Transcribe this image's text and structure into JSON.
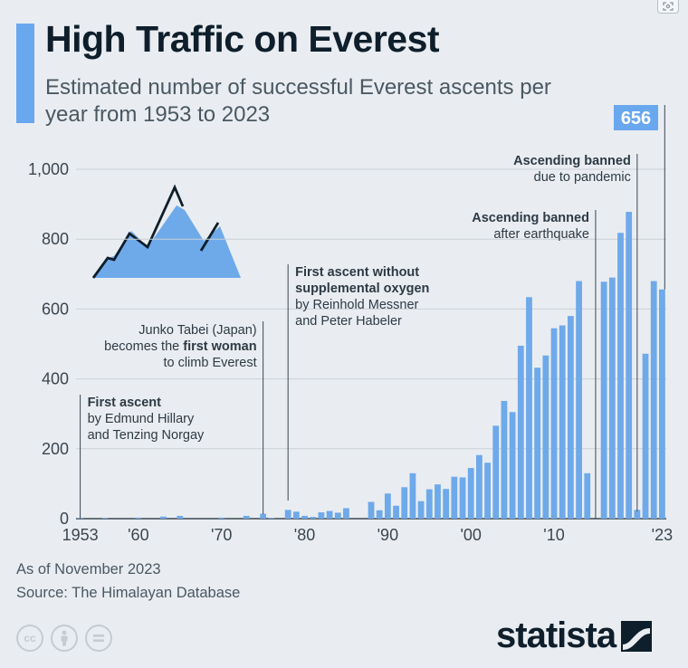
{
  "header": {
    "title": "High Traffic on Everest",
    "subtitle": "Estimated number of successful Everest ascents per year from 1953 to 2023"
  },
  "chart_data": {
    "type": "bar",
    "ylim": [
      0,
      1000
    ],
    "yticks": [
      0,
      200,
      400,
      600,
      800,
      1000
    ],
    "ytick_labels": [
      "0",
      "200",
      "400",
      "600",
      "800",
      "1,000"
    ],
    "grid": true,
    "bar_color": "#6ea9ea",
    "xtick_labels": [
      {
        "year": 1953,
        "label": "1953"
      },
      {
        "year": 1960,
        "label": "'60"
      },
      {
        "year": 1970,
        "label": "'70"
      },
      {
        "year": 1980,
        "label": "'80"
      },
      {
        "year": 1990,
        "label": "'90"
      },
      {
        "year": 2000,
        "label": "'00"
      },
      {
        "year": 2010,
        "label": "'10"
      },
      {
        "year": 2023,
        "label": "'23"
      }
    ],
    "x": [
      1953,
      1954,
      1955,
      1956,
      1957,
      1958,
      1959,
      1960,
      1961,
      1962,
      1963,
      1964,
      1965,
      1966,
      1967,
      1968,
      1969,
      1970,
      1971,
      1972,
      1973,
      1974,
      1975,
      1976,
      1977,
      1978,
      1979,
      1980,
      1981,
      1982,
      1983,
      1984,
      1985,
      1986,
      1987,
      1988,
      1989,
      1990,
      1991,
      1992,
      1993,
      1994,
      1995,
      1996,
      1997,
      1998,
      1999,
      2000,
      2001,
      2002,
      2003,
      2004,
      2005,
      2006,
      2007,
      2008,
      2009,
      2010,
      2011,
      2012,
      2013,
      2014,
      2015,
      2016,
      2017,
      2018,
      2019,
      2020,
      2021,
      2022,
      2023
    ],
    "values": [
      2,
      0,
      0,
      2,
      0,
      0,
      0,
      3,
      0,
      0,
      6,
      0,
      8,
      0,
      0,
      0,
      0,
      3,
      0,
      0,
      8,
      0,
      14,
      2,
      0,
      25,
      20,
      8,
      5,
      18,
      22,
      17,
      30,
      0,
      0,
      48,
      24,
      72,
      37,
      90,
      130,
      50,
      84,
      98,
      85,
      120,
      118,
      145,
      182,
      160,
      266,
      337,
      305,
      495,
      634,
      432,
      467,
      545,
      553,
      580,
      680,
      130,
      0,
      678,
      690,
      818,
      878,
      25,
      472,
      680,
      656
    ],
    "annotations": [
      {
        "year": 1953,
        "lead": "First ascent",
        "lead_bold": true,
        "rest": [
          "by Edmund Hillary",
          "and Tenzing Norgay"
        ]
      },
      {
        "year": 1975,
        "lines": [
          "Junko Tabei (Japan)",
          "becomes the first woman",
          "to climb Everest"
        ],
        "bold_phrase": "first woman"
      },
      {
        "year": 1978,
        "lead": "First ascent without supplemental oxygen",
        "lead_bold": true,
        "rest": [
          "by Reinhold Messner",
          "and Peter Habeler"
        ]
      },
      {
        "year": 2015,
        "lead": "Ascending banned",
        "lead_bold": true,
        "rest": [
          "after earthquake"
        ]
      },
      {
        "year": 2020,
        "lead": "Ascending banned",
        "lead_bold": true,
        "rest": [
          "due to pandemic"
        ]
      }
    ],
    "callout": {
      "year": 2023,
      "label": "656"
    }
  },
  "footer": {
    "note": "As of November 2023",
    "source": "Source: The Himalayan Database"
  },
  "license": {
    "icons": [
      "cc-icon",
      "by-icon",
      "nd-icon"
    ],
    "cc_text": "cc"
  },
  "brand": {
    "name": "statista"
  }
}
